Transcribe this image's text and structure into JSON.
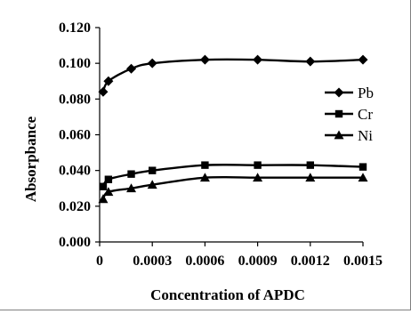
{
  "chart_data": {
    "type": "line",
    "xlabel": "Concentration of APDC",
    "ylabel": "Absorpbance",
    "xlim": [
      0,
      0.0015
    ],
    "ylim": [
      0,
      0.12
    ],
    "x_ticks": [
      "0",
      "0.0003",
      "0.0006",
      "0.0009",
      "0.0012",
      "0.0015"
    ],
    "x_tick_values": [
      0,
      0.0003,
      0.0006,
      0.0009,
      0.0012,
      0.0015
    ],
    "y_ticks": [
      "0.000",
      "0.020",
      "0.040",
      "0.060",
      "0.080",
      "0.100",
      "0.120"
    ],
    "y_tick_values": [
      0,
      0.02,
      0.04,
      0.06,
      0.08,
      0.1,
      0.12
    ],
    "grid": false,
    "legend_position": "right",
    "series": [
      {
        "name": "Pb",
        "marker": "diamond",
        "color": "#000000",
        "x": [
          2e-05,
          5e-05,
          0.00018,
          0.0003,
          0.0006,
          0.0009,
          0.0012,
          0.0015
        ],
        "y": [
          0.084,
          0.09,
          0.097,
          0.1,
          0.102,
          0.102,
          0.101,
          0.102
        ]
      },
      {
        "name": "Cr",
        "marker": "square",
        "color": "#000000",
        "x": [
          2e-05,
          5e-05,
          0.00018,
          0.0003,
          0.0006,
          0.0009,
          0.0012,
          0.0015
        ],
        "y": [
          0.031,
          0.035,
          0.038,
          0.04,
          0.043,
          0.043,
          0.043,
          0.042
        ]
      },
      {
        "name": "Ni",
        "marker": "triangle",
        "color": "#000000",
        "x": [
          2e-05,
          5e-05,
          0.00018,
          0.0003,
          0.0006,
          0.0009,
          0.0012,
          0.0015
        ],
        "y": [
          0.024,
          0.028,
          0.03,
          0.032,
          0.036,
          0.036,
          0.036,
          0.036
        ]
      }
    ]
  }
}
